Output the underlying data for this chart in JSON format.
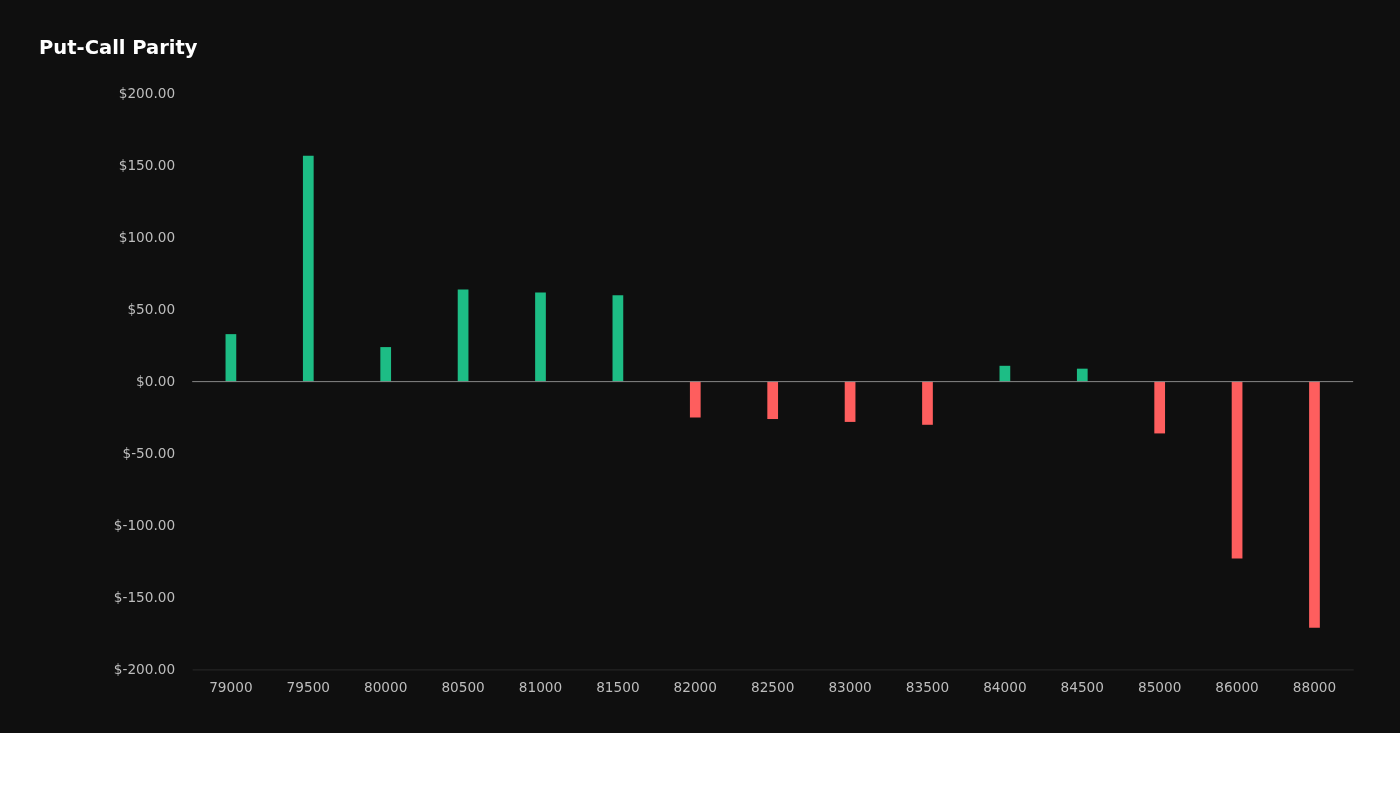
{
  "chart_data": {
    "type": "bar",
    "title": "Put-Call Parity",
    "categories": [
      "79000",
      "79500",
      "80000",
      "80500",
      "81000",
      "81500",
      "82000",
      "82500",
      "83000",
      "83500",
      "84000",
      "84500",
      "85000",
      "86000",
      "88000"
    ],
    "values": [
      33,
      157,
      24,
      64,
      62,
      60,
      -25,
      -26,
      -28,
      -30,
      11,
      9,
      -36,
      -123,
      -171
    ],
    "colors": [
      "#1dbd85",
      "#1dbd85",
      "#1dbd85",
      "#1dbd85",
      "#1dbd85",
      "#1dbd85",
      "#fe5e5e",
      "#fe5e5e",
      "#fe5e5e",
      "#fe5e5e",
      "#1dbd85",
      "#1dbd85",
      "#fe5e5e",
      "#fe5e5e",
      "#fe5e5e"
    ],
    "ylim": [
      -200,
      200
    ],
    "yticks": [
      {
        "value": 200,
        "label": "$200.00"
      },
      {
        "value": 150,
        "label": "$150.00"
      },
      {
        "value": 100,
        "label": "$100.00"
      },
      {
        "value": 50,
        "label": "$50.00"
      },
      {
        "value": 0,
        "label": "$0.00"
      },
      {
        "value": -50,
        "label": "$-50.00"
      },
      {
        "value": -100,
        "label": "$-100.00"
      },
      {
        "value": -150,
        "label": "$-150.00"
      },
      {
        "value": -200,
        "label": "$-200.00"
      }
    ],
    "ref_lines": [
      {
        "axis": "y",
        "value": 0,
        "color": "#8a8a8a"
      }
    ],
    "grid": false
  }
}
